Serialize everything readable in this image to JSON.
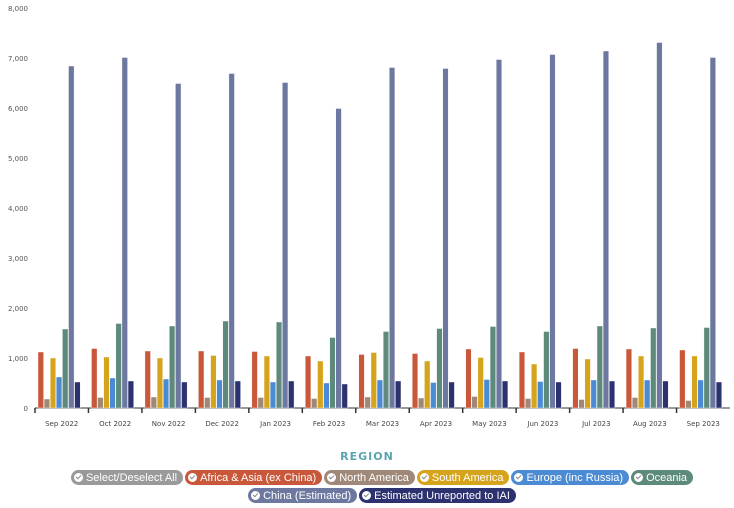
{
  "chart_data": {
    "type": "bar",
    "title": "",
    "xlabel": "",
    "ylabel": "",
    "ylim": [
      0,
      8000
    ],
    "yticks": [
      "0",
      "1,000",
      "2,000",
      "3,000",
      "4,000",
      "5,000",
      "6,000",
      "7,000",
      "8,000"
    ],
    "categories": [
      "Sep 2022",
      "Oct 2022",
      "Nov 2022",
      "Dec 2022",
      "Jan 2023",
      "Feb 2023",
      "Mar 2023",
      "Apr 2023",
      "May 2023",
      "Jun 2023",
      "Jul 2023",
      "Aug 2023",
      "Sep 2023"
    ],
    "series": [
      {
        "name": "Africa & Asia (ex China)",
        "color": "#c9583a",
        "values": [
          1120,
          1190,
          1140,
          1140,
          1130,
          1040,
          1070,
          1090,
          1180,
          1120,
          1190,
          1180,
          1160
        ]
      },
      {
        "name": "North America",
        "color": "#a08878",
        "values": [
          180,
          210,
          220,
          210,
          210,
          190,
          220,
          200,
          230,
          190,
          170,
          210,
          150
        ]
      },
      {
        "name": "South America",
        "color": "#d6a41c",
        "values": [
          1000,
          1020,
          1000,
          1050,
          1040,
          940,
          1110,
          940,
          1010,
          880,
          980,
          1040,
          1040
        ]
      },
      {
        "name": "Europe (inc Russia)",
        "color": "#4a8bd4",
        "values": [
          620,
          600,
          580,
          560,
          520,
          500,
          560,
          510,
          570,
          530,
          560,
          560,
          560
        ]
      },
      {
        "name": "Oceania",
        "color": "#5d8a7a",
        "values": [
          1580,
          1690,
          1640,
          1740,
          1720,
          1410,
          1530,
          1590,
          1630,
          1530,
          1640,
          1600,
          1610
        ]
      },
      {
        "name": "China (Estimated)",
        "color": "#6d78a0",
        "values": [
          6840,
          7010,
          6490,
          6690,
          6510,
          5990,
          6810,
          6790,
          6970,
          7070,
          7140,
          7310,
          7010
        ]
      },
      {
        "name": "Estimated Unreported to IAI",
        "color": "#2c3170",
        "values": [
          520,
          540,
          520,
          540,
          540,
          480,
          540,
          520,
          540,
          520,
          540,
          540,
          520
        ]
      }
    ],
    "legend_title": "REGION",
    "legend_placement": "bottom",
    "select_all_label": "Select/Deselect All",
    "select_all_color": "#9a9a9a"
  }
}
